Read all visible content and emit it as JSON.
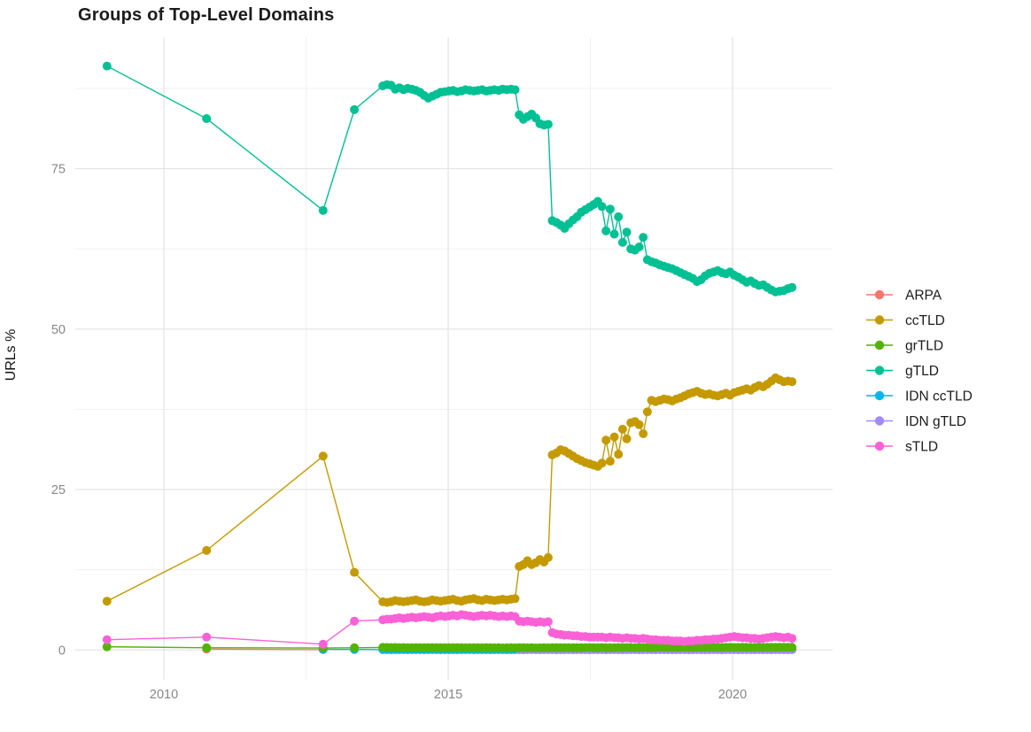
{
  "chart_data": {
    "type": "line",
    "title": "Groups of Top-Level Domains",
    "xlabel": "",
    "ylabel": "URLs %",
    "grid": true,
    "legend_position": "right",
    "xlim": [
      2008.442,
      2021.76
    ],
    "ylim": [
      -4.65,
      95.49
    ],
    "x_ticks": [
      {
        "value": 2010,
        "label": "2010"
      },
      {
        "value": 2015,
        "label": "2015"
      },
      {
        "value": 2020,
        "label": "2020"
      }
    ],
    "x_minor_ticks": [
      2012.5,
      2017.5
    ],
    "y_ticks": [
      {
        "value": 0,
        "label": "0"
      },
      {
        "value": 25,
        "label": "25"
      },
      {
        "value": 50,
        "label": "50"
      },
      {
        "value": 75,
        "label": "75"
      }
    ],
    "y_minor_ticks": [
      12.5,
      37.5,
      62.5,
      87.5
    ],
    "draw_order": [
      "ARPA",
      "IDN ccTLD",
      "IDN gTLD",
      "grTLD",
      "gTLD",
      "ccTLD",
      "sTLD"
    ],
    "series": [
      {
        "name": "ARPA",
        "color": "#F8766D",
        "early": [
          [
            2010.75,
            0.12
          ],
          [
            2012.8,
            0.05
          ]
        ],
        "dense": null
      },
      {
        "name": "ccTLD",
        "color": "#C49A00",
        "early": [
          [
            2009.0,
            7.6
          ],
          [
            2010.75,
            15.5
          ],
          [
            2012.8,
            30.2
          ],
          [
            2013.35,
            12.1
          ]
        ],
        "dense": {
          "x_start": 2013.85,
          "x_step": 0.0727,
          "y": [
            7.5,
            7.4,
            7.5,
            7.7,
            7.6,
            7.5,
            7.6,
            7.7,
            7.8,
            7.6,
            7.5,
            7.6,
            7.8,
            7.7,
            7.6,
            7.7,
            7.8,
            7.9,
            7.7,
            7.6,
            7.8,
            7.9,
            8.0,
            7.8,
            7.7,
            7.9,
            7.8,
            7.7,
            7.8,
            7.9,
            7.8,
            7.9,
            8.0,
            13.0,
            13.3,
            13.9,
            13.3,
            13.6,
            14.1,
            13.7,
            14.4,
            30.4,
            30.7,
            31.2,
            31.0,
            30.6,
            30.2,
            29.8,
            29.5,
            29.2,
            29.0,
            28.8,
            28.6,
            29.1,
            32.7,
            29.4,
            33.2,
            30.5,
            34.4,
            32.9,
            35.4,
            35.6,
            35.1,
            33.7,
            37.1,
            38.9,
            38.7,
            38.9,
            39.1,
            39.0,
            38.8,
            39.1,
            39.3,
            39.6,
            39.9,
            40.1,
            40.3,
            40.0,
            39.8,
            39.9,
            39.7,
            39.6,
            39.8,
            40.0,
            39.7,
            40.1,
            40.3,
            40.5,
            40.7,
            40.5,
            40.9,
            41.2,
            41.0,
            41.4,
            41.9,
            42.4,
            42.1,
            41.8,
            41.9,
            41.8
          ]
        }
      },
      {
        "name": "grTLD",
        "color": "#53B400",
        "early": [
          [
            2009.0,
            0.5
          ],
          [
            2010.75,
            0.35
          ],
          [
            2012.8,
            0.3
          ],
          [
            2013.35,
            0.35
          ]
        ],
        "dense": {
          "x_start": 2013.85,
          "x_step": 0.0727,
          "y": [
            0.4,
            0.38,
            0.37,
            0.38,
            0.36,
            0.37,
            0.35,
            0.36,
            0.37,
            0.35,
            0.36,
            0.34,
            0.35,
            0.36,
            0.35,
            0.34,
            0.35,
            0.36,
            0.34,
            0.35,
            0.33,
            0.34,
            0.35,
            0.34,
            0.33,
            0.34,
            0.35,
            0.33,
            0.34,
            0.32,
            0.33,
            0.34,
            0.33,
            0.35,
            0.34,
            0.33,
            0.34,
            0.32,
            0.33,
            0.34,
            0.33,
            0.35,
            0.36,
            0.34,
            0.35,
            0.36,
            0.35,
            0.34,
            0.35,
            0.36,
            0.37,
            0.35,
            0.36,
            0.37,
            0.36,
            0.35,
            0.36,
            0.37,
            0.36,
            0.38,
            0.37,
            0.36,
            0.37,
            0.38,
            0.37,
            0.36,
            0.37,
            0.38,
            0.39,
            0.37,
            0.38,
            0.39,
            0.38,
            0.37,
            0.38,
            0.39,
            0.4,
            0.38,
            0.39,
            0.4,
            0.39,
            0.38,
            0.39,
            0.4,
            0.41,
            0.39,
            0.4,
            0.41,
            0.4,
            0.39,
            0.4,
            0.41,
            0.4,
            0.42,
            0.41,
            0.4,
            0.41,
            0.42,
            0.41,
            0.4
          ]
        }
      },
      {
        "name": "gTLD",
        "color": "#00C094",
        "early": [
          [
            2009.0,
            91.0
          ],
          [
            2010.75,
            82.8
          ],
          [
            2012.8,
            68.5
          ],
          [
            2013.35,
            84.2
          ]
        ],
        "dense": {
          "x_start": 2013.85,
          "x_step": 0.0727,
          "y": [
            87.9,
            88.1,
            88.0,
            87.4,
            87.6,
            87.3,
            87.5,
            87.4,
            87.2,
            86.9,
            86.4,
            86.0,
            86.3,
            86.6,
            86.9,
            87.0,
            87.1,
            87.2,
            87.0,
            87.1,
            87.3,
            87.2,
            87.1,
            87.2,
            87.3,
            87.1,
            87.2,
            87.3,
            87.2,
            87.4,
            87.3,
            87.4,
            87.3,
            83.4,
            82.7,
            83.1,
            83.5,
            82.9,
            82.0,
            81.8,
            81.9,
            66.9,
            66.6,
            66.2,
            65.7,
            66.4,
            67.0,
            67.5,
            68.2,
            68.6,
            69.0,
            69.4,
            69.9,
            69.1,
            65.3,
            68.7,
            64.8,
            67.5,
            63.5,
            65.1,
            62.5,
            62.3,
            62.8,
            64.3,
            60.8,
            60.5,
            60.3,
            60.0,
            59.8,
            59.6,
            59.4,
            59.1,
            58.8,
            58.5,
            58.2,
            57.9,
            57.4,
            57.7,
            58.3,
            58.7,
            58.9,
            59.1,
            58.8,
            58.6,
            58.9,
            58.4,
            58.1,
            57.7,
            57.3,
            57.5,
            57.1,
            56.8,
            56.9,
            56.5,
            56.1,
            55.8,
            55.9,
            56.0,
            56.3,
            56.5
          ]
        }
      },
      {
        "name": "IDN ccTLD",
        "color": "#00B6EB",
        "early": [
          [
            2012.8,
            0.1
          ],
          [
            2013.35,
            0.08
          ]
        ],
        "dense": {
          "x_start": 2013.85,
          "x_step": 0.0727,
          "y": [
            0.05,
            0.06,
            0.04,
            0.05,
            0.05,
            0.06,
            0.04,
            0.05,
            0.05,
            0.06,
            0.04,
            0.05,
            0.05,
            0.06,
            0.04,
            0.05,
            0.05,
            0.06,
            0.04,
            0.05,
            0.05,
            0.06,
            0.04,
            0.05,
            0.05,
            0.06,
            0.04,
            0.05,
            0.05,
            0.06,
            0.04,
            0.05,
            0.05,
            0.06,
            0.04,
            0.05,
            0.05,
            0.06,
            0.04,
            0.05,
            0.05,
            0.06,
            0.04,
            0.05,
            0.05,
            0.06,
            0.04,
            0.05,
            0.05,
            0.06,
            0.04,
            0.05,
            0.05,
            0.06,
            0.04,
            0.05,
            0.05,
            0.06,
            0.04,
            0.05,
            0.05,
            0.06,
            0.04,
            0.05,
            0.05,
            0.06,
            0.04,
            0.05,
            0.05,
            0.06,
            0.04,
            0.05,
            0.05,
            0.06,
            0.04,
            0.05,
            0.05,
            0.06,
            0.04,
            0.05,
            0.05,
            0.06,
            0.04,
            0.05,
            0.05,
            0.06,
            0.04,
            0.05,
            0.05,
            0.06,
            0.04,
            0.05,
            0.05,
            0.06,
            0.04,
            0.05,
            0.05,
            0.06,
            0.04,
            0.05
          ]
        }
      },
      {
        "name": "IDN gTLD",
        "color": "#A58AFF",
        "early": [],
        "dense": {
          "x_start": 2016.25,
          "x_step": 0.0727,
          "y": [
            0.1,
            0.11,
            0.09,
            0.1,
            0.12,
            0.1,
            0.11,
            0.09,
            0.1,
            0.12,
            0.1,
            0.11,
            0.09,
            0.1,
            0.12,
            0.1,
            0.11,
            0.09,
            0.1,
            0.12,
            0.1,
            0.11,
            0.09,
            0.1,
            0.12,
            0.1,
            0.11,
            0.09,
            0.1,
            0.12,
            0.1,
            0.11,
            0.09,
            0.1,
            0.12,
            0.1,
            0.11,
            0.09,
            0.1,
            0.12,
            0.1,
            0.11,
            0.09,
            0.1,
            0.12,
            0.1,
            0.11,
            0.09,
            0.1,
            0.12,
            0.1,
            0.11,
            0.09,
            0.1,
            0.12,
            0.1,
            0.11,
            0.09,
            0.1,
            0.12,
            0.1,
            0.11,
            0.09,
            0.1,
            0.12,
            0.1,
            0.11
          ]
        }
      },
      {
        "name": "sTLD",
        "color": "#FB61D7",
        "early": [
          [
            2009.0,
            1.6
          ],
          [
            2010.75,
            2.0
          ],
          [
            2012.8,
            0.9
          ],
          [
            2013.35,
            4.5
          ]
        ],
        "dense": {
          "x_start": 2013.85,
          "x_step": 0.0727,
          "y": [
            4.7,
            4.8,
            4.8,
            4.9,
            5.0,
            4.9,
            5.0,
            5.1,
            5.0,
            5.1,
            5.2,
            5.1,
            5.0,
            5.2,
            5.3,
            5.2,
            5.3,
            5.4,
            5.3,
            5.5,
            5.4,
            5.3,
            5.2,
            5.3,
            5.4,
            5.3,
            5.4,
            5.3,
            5.2,
            5.3,
            5.2,
            5.3,
            5.2,
            4.5,
            4.4,
            4.5,
            4.4,
            4.3,
            4.4,
            4.3,
            4.4,
            2.7,
            2.5,
            2.4,
            2.3,
            2.3,
            2.2,
            2.2,
            2.1,
            2.1,
            2.0,
            2.0,
            2.0,
            2.0,
            1.9,
            2.0,
            1.9,
            1.9,
            1.8,
            1.9,
            1.8,
            1.8,
            1.7,
            1.8,
            1.7,
            1.6,
            1.6,
            1.5,
            1.5,
            1.5,
            1.4,
            1.4,
            1.4,
            1.3,
            1.4,
            1.4,
            1.5,
            1.5,
            1.6,
            1.6,
            1.7,
            1.7,
            1.8,
            1.9,
            2.0,
            2.1,
            2.0,
            1.9,
            1.9,
            1.8,
            1.8,
            1.7,
            1.8,
            1.9,
            2.0,
            2.1,
            2.0,
            1.9,
            2.0,
            1.8
          ]
        }
      }
    ],
    "legend": {
      "labels": [
        "ARPA",
        "ccTLD",
        "grTLD",
        "gTLD",
        "IDN ccTLD",
        "IDN gTLD",
        "sTLD"
      ]
    }
  }
}
